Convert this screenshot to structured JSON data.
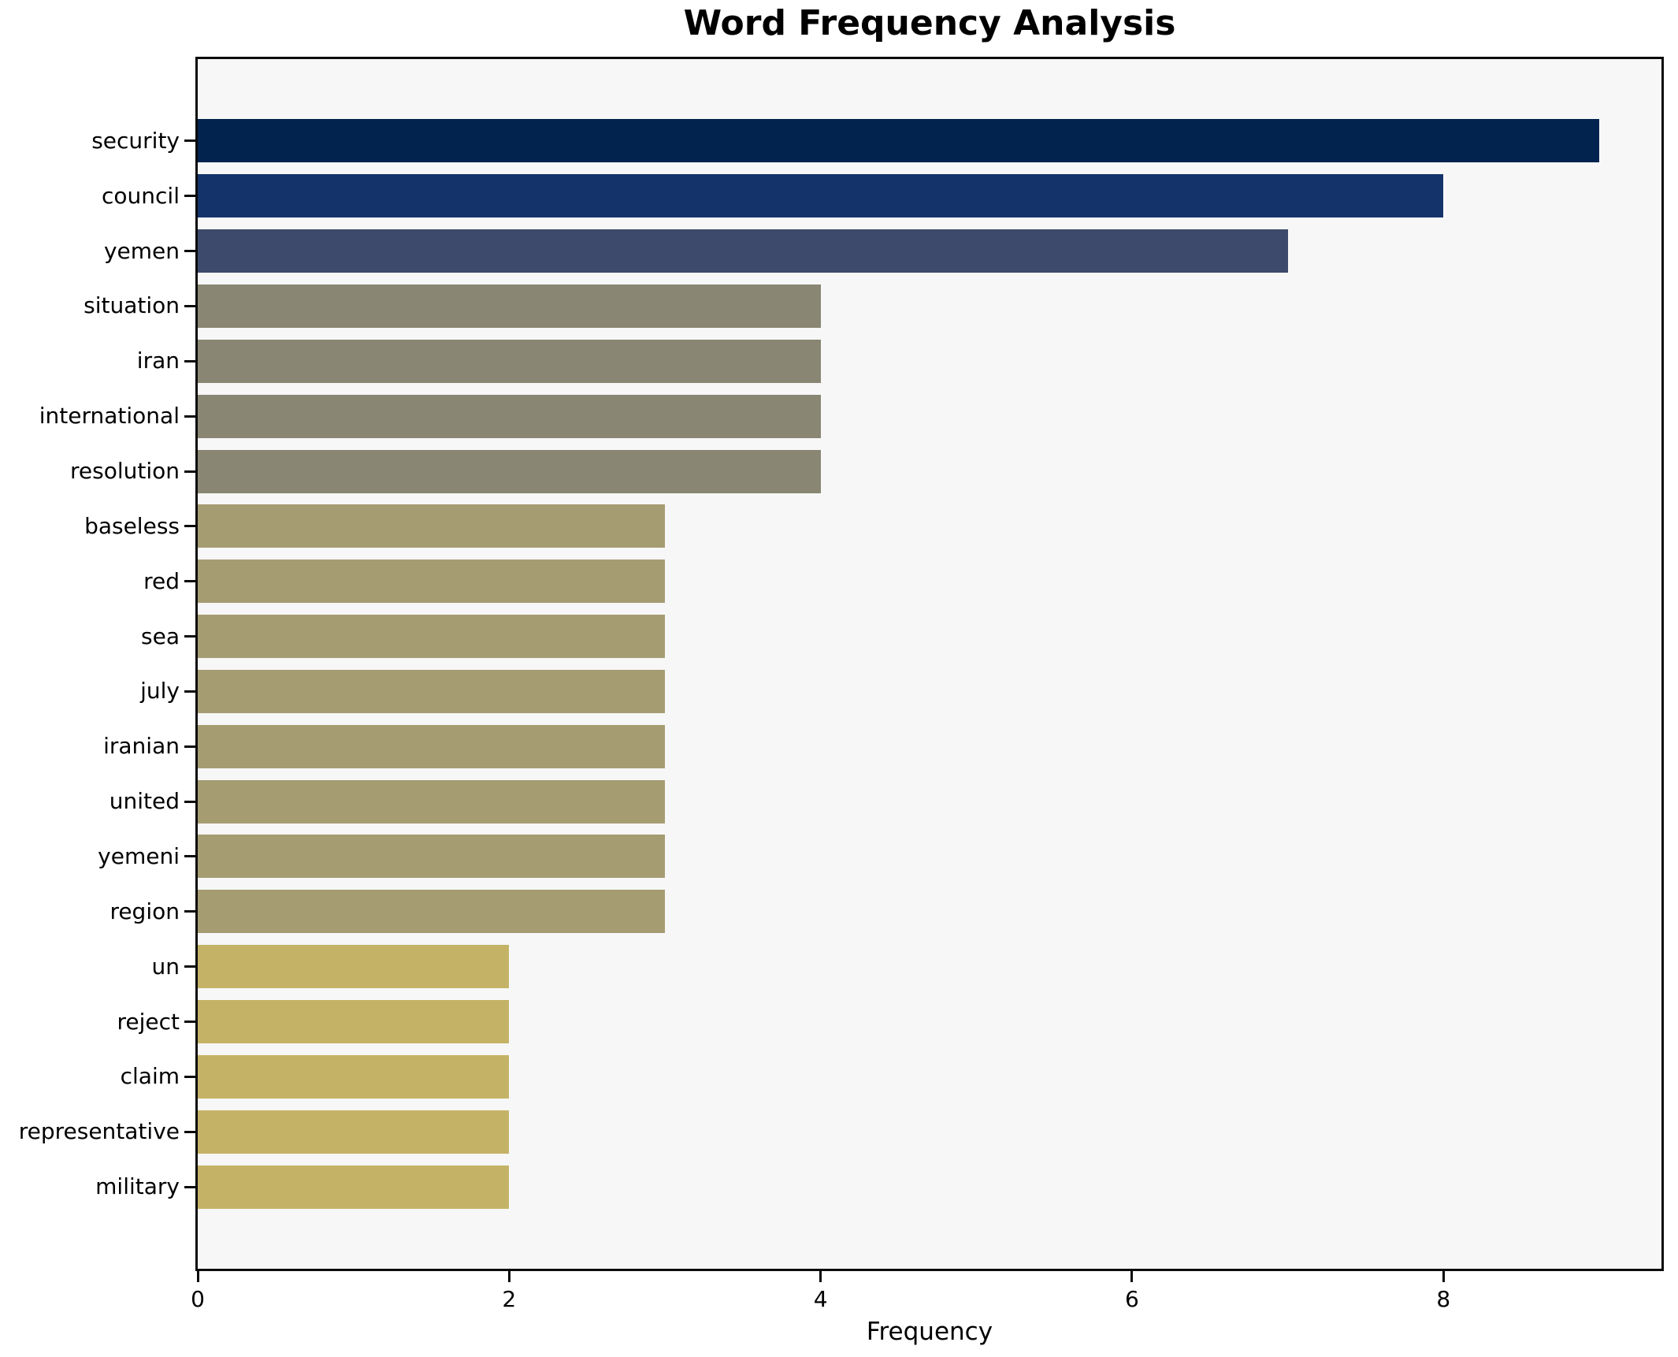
{
  "chart_data": {
    "type": "bar",
    "orientation": "horizontal",
    "title": "Word Frequency Analysis",
    "xlabel": "Frequency",
    "ylabel": "",
    "categories": [
      "security",
      "council",
      "yemen",
      "situation",
      "iran",
      "international",
      "resolution",
      "baseless",
      "red",
      "sea",
      "july",
      "iranian",
      "united",
      "yemeni",
      "region",
      "un",
      "reject",
      "claim",
      "representative",
      "military"
    ],
    "values": [
      9,
      8,
      7,
      4,
      4,
      4,
      4,
      3,
      3,
      3,
      3,
      3,
      3,
      3,
      3,
      2,
      2,
      2,
      2,
      2
    ],
    "xlim": [
      0,
      9.4
    ],
    "xticks": [
      0,
      2,
      4,
      6,
      8
    ],
    "grid": false,
    "legend_position": "none",
    "colors_by_value": {
      "9": "#02234e",
      "8": "#14336a",
      "7": "#3d4a6b",
      "4": "#898673",
      "3": "#a69c72",
      "2": "#c4b366"
    },
    "plot_background": "#f7f7f7",
    "figure_background": "#ffffff",
    "axis_color": "#0a0a0a"
  }
}
